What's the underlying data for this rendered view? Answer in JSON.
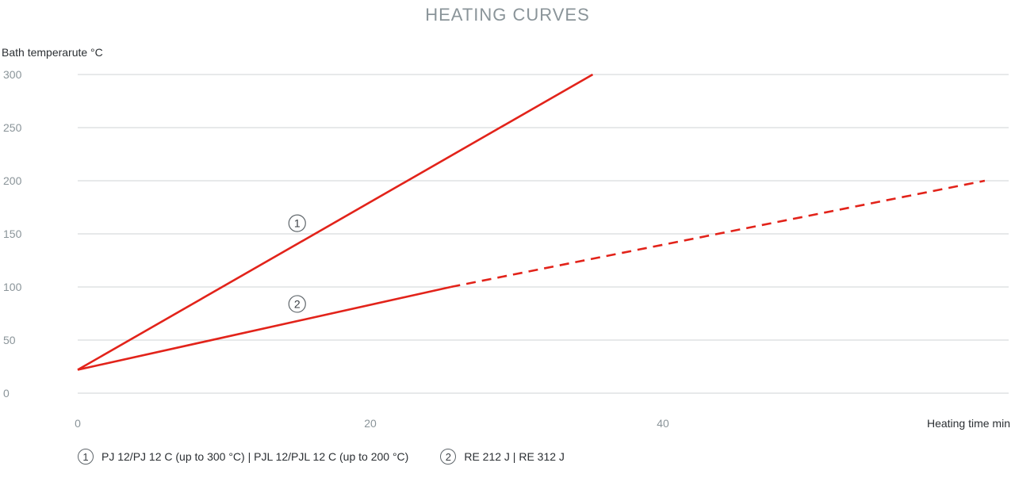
{
  "chart_data": {
    "type": "line",
    "title": "HEATING CURVES",
    "ylabel": "Bath temperarute °C",
    "xlabel": "Heating time min",
    "ylim": [
      0,
      300
    ],
    "xlim": [
      0,
      64
    ],
    "yticks": [
      0,
      50,
      100,
      150,
      200,
      250,
      300
    ],
    "xticks": [
      0,
      20,
      40
    ],
    "grid": true,
    "colors": {
      "line": "#e2231a",
      "grid": "#cfd3d6",
      "axis_text": "#8a9499"
    },
    "series": [
      {
        "marker": "1",
        "solid": [
          [
            0,
            22
          ],
          [
            35.2,
            300
          ]
        ],
        "dashed": [],
        "marker_at": [
          15,
          160
        ]
      },
      {
        "marker": "2",
        "solid": [
          [
            0,
            22
          ],
          [
            25.5,
            100
          ]
        ],
        "dashed": [
          [
            25.5,
            100
          ],
          [
            62,
            200
          ]
        ],
        "marker_at": [
          15,
          84
        ]
      }
    ],
    "legend": [
      {
        "marker": "1",
        "label": "PJ 12/PJ 12 C (up to 300 °C) | PJL 12/PJL 12 C (up to 200 °C)"
      },
      {
        "marker": "2",
        "label": "RE 212 J | RE 312 J"
      }
    ]
  }
}
